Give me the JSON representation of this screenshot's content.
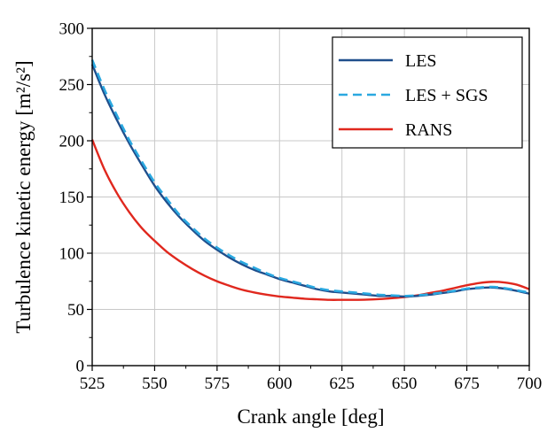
{
  "chart_data": {
    "type": "line",
    "xlabel": "Crank angle [deg]",
    "ylabel": "Turbulence kinetic energy [m²/s²]",
    "xlim": [
      525,
      700
    ],
    "ylim": [
      0,
      300
    ],
    "xticks": [
      525,
      550,
      575,
      600,
      625,
      650,
      675,
      700
    ],
    "yticks": [
      0,
      50,
      100,
      150,
      200,
      250,
      300
    ],
    "grid": true,
    "legend_position": "top-right",
    "series": [
      {
        "name": "LES",
        "color": "#1f4e8c",
        "style": "solid",
        "x": [
          525,
          530,
          535,
          540,
          545,
          550,
          555,
          560,
          565,
          570,
          575,
          580,
          585,
          590,
          595,
          600,
          605,
          610,
          615,
          620,
          625,
          630,
          635,
          640,
          645,
          650,
          655,
          660,
          665,
          670,
          675,
          680,
          685,
          690,
          695,
          700
        ],
        "y": [
          268,
          241,
          218,
          197,
          178,
          160,
          145,
          132,
          121,
          111,
          103,
          96,
          90,
          85,
          81,
          77,
          74,
          71,
          68,
          66,
          65,
          64,
          63,
          62,
          62,
          61.5,
          62,
          63,
          64.5,
          66,
          68,
          69,
          69.5,
          68.5,
          66.5,
          64
        ]
      },
      {
        "name": "LES + SGS",
        "color": "#2aa8e0",
        "style": "dashed",
        "x": [
          525,
          530,
          535,
          540,
          545,
          550,
          555,
          560,
          565,
          570,
          575,
          580,
          585,
          590,
          595,
          600,
          605,
          610,
          615,
          620,
          625,
          630,
          635,
          640,
          645,
          650,
          655,
          660,
          665,
          670,
          675,
          680,
          685,
          690,
          695,
          700
        ],
        "y": [
          272,
          245,
          222,
          200,
          181,
          163,
          148,
          134,
          123,
          113,
          105,
          98,
          92,
          87,
          82,
          78,
          75,
          72,
          69,
          67,
          66,
          65,
          64,
          63,
          62.5,
          62,
          62.5,
          63.5,
          65,
          66.5,
          68.5,
          69.5,
          70,
          69,
          67,
          65
        ]
      },
      {
        "name": "RANS",
        "color": "#e0281e",
        "style": "solid",
        "x": [
          525,
          530,
          535,
          540,
          545,
          550,
          555,
          560,
          565,
          570,
          575,
          580,
          585,
          590,
          595,
          600,
          605,
          610,
          615,
          620,
          625,
          630,
          635,
          640,
          645,
          650,
          655,
          660,
          665,
          670,
          675,
          680,
          685,
          690,
          695,
          700
        ],
        "y": [
          201,
          174,
          153,
          136,
          122,
          111,
          101,
          93,
          86,
          80,
          75,
          71,
          67.5,
          65,
          63,
          61.5,
          60.5,
          59.5,
          59,
          58.5,
          58.5,
          58.5,
          58.7,
          59.2,
          60,
          61,
          62.5,
          64.5,
          66.5,
          69,
          71.5,
          73.5,
          74.5,
          74,
          72,
          68
        ]
      }
    ]
  }
}
